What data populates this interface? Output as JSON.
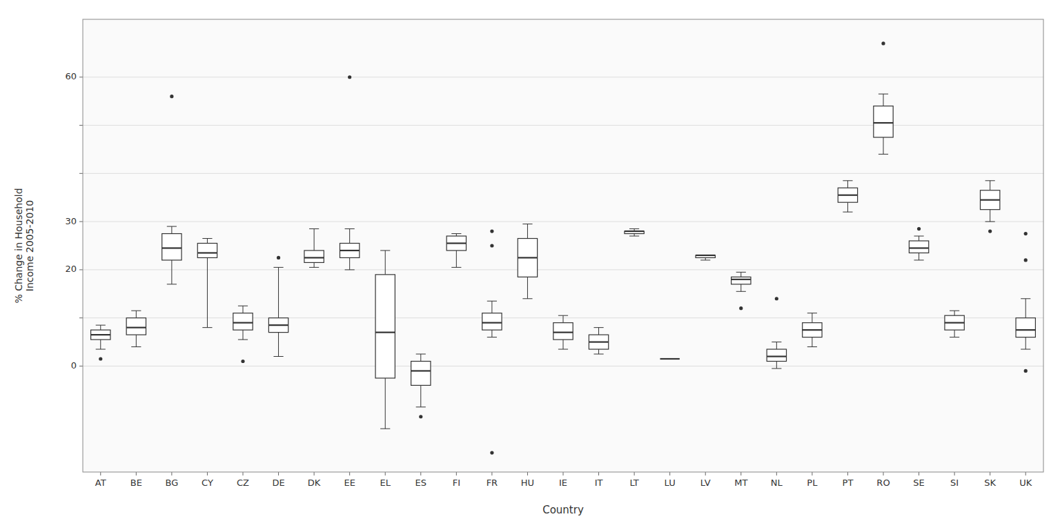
{
  "chart_data": {
    "type": "box",
    "xlabel": "Country",
    "ylabel": "% Change in Household\nIncome 2005-2010",
    "categories": [
      "AT",
      "BE",
      "BG",
      "CY",
      "CZ",
      "DE",
      "DK",
      "EE",
      "EL",
      "ES",
      "FI",
      "FR",
      "HU",
      "IE",
      "IT",
      "LT",
      "LU",
      "LV",
      "MT",
      "NL",
      "PL",
      "PT",
      "RO",
      "SE",
      "SI",
      "SK",
      "UK"
    ],
    "boxes": [
      {
        "whislo": 3.5,
        "q1": 5.5,
        "med": 6.5,
        "q3": 7.5,
        "whishi": 8.5,
        "fliers": [
          1.5
        ]
      },
      {
        "whislo": 4.0,
        "q1": 6.5,
        "med": 8.0,
        "q3": 10.0,
        "whishi": 11.5,
        "fliers": []
      },
      {
        "whislo": 17.0,
        "q1": 22.0,
        "med": 24.5,
        "q3": 27.5,
        "whishi": 29.0,
        "fliers": [
          56.0
        ]
      },
      {
        "whislo": 8.0,
        "q1": 22.5,
        "med": 23.5,
        "q3": 25.5,
        "whishi": 26.5,
        "fliers": []
      },
      {
        "whislo": 5.5,
        "q1": 7.5,
        "med": 9.0,
        "q3": 11.0,
        "whishi": 12.5,
        "fliers": [
          1.0
        ]
      },
      {
        "whislo": 2.0,
        "q1": 7.0,
        "med": 8.5,
        "q3": 10.0,
        "whishi": 20.5,
        "fliers": [
          22.5
        ]
      },
      {
        "whislo": 20.5,
        "q1": 21.5,
        "med": 22.5,
        "q3": 24.0,
        "whishi": 28.5,
        "fliers": []
      },
      {
        "whislo": 20.0,
        "q1": 22.5,
        "med": 24.0,
        "q3": 25.5,
        "whishi": 28.5,
        "fliers": [
          60.0
        ]
      },
      {
        "whislo": -13.0,
        "q1": -2.5,
        "med": 7.0,
        "q3": 19.0,
        "whishi": 24.0,
        "fliers": []
      },
      {
        "whislo": -8.5,
        "q1": -4.0,
        "med": -1.0,
        "q3": 1.0,
        "whishi": 2.5,
        "fliers": [
          -10.5
        ]
      },
      {
        "whislo": 20.5,
        "q1": 24.0,
        "med": 25.5,
        "q3": 27.0,
        "whishi": 27.5,
        "fliers": []
      },
      {
        "whislo": 6.0,
        "q1": 7.5,
        "med": 9.0,
        "q3": 11.0,
        "whishi": 13.5,
        "fliers": [
          28.0,
          25.0,
          -18.0
        ]
      },
      {
        "whislo": 14.0,
        "q1": 18.5,
        "med": 22.5,
        "q3": 26.5,
        "whishi": 29.5,
        "fliers": []
      },
      {
        "whislo": 3.5,
        "q1": 5.5,
        "med": 7.0,
        "q3": 9.0,
        "whishi": 10.5,
        "fliers": []
      },
      {
        "whislo": 2.5,
        "q1": 3.5,
        "med": 5.0,
        "q3": 6.5,
        "whishi": 8.0,
        "fliers": []
      },
      {
        "whislo": 27.0,
        "q1": 27.5,
        "med": 28.0,
        "q3": 28.0,
        "whishi": 28.5,
        "fliers": []
      },
      {
        "whislo": 1.5,
        "q1": 1.5,
        "med": 1.5,
        "q3": 1.5,
        "whishi": 1.5,
        "fliers": []
      },
      {
        "whislo": 22.0,
        "q1": 22.5,
        "med": 23.0,
        "q3": 23.0,
        "whishi": 23.0,
        "fliers": []
      },
      {
        "whislo": 15.5,
        "q1": 17.0,
        "med": 18.0,
        "q3": 18.5,
        "whishi": 19.5,
        "fliers": [
          12.0
        ]
      },
      {
        "whislo": -0.5,
        "q1": 1.0,
        "med": 2.0,
        "q3": 3.5,
        "whishi": 5.0,
        "fliers": [
          14.0
        ]
      },
      {
        "whislo": 4.0,
        "q1": 6.0,
        "med": 7.5,
        "q3": 9.0,
        "whishi": 11.0,
        "fliers": []
      },
      {
        "whislo": 32.0,
        "q1": 34.0,
        "med": 35.5,
        "q3": 37.0,
        "whishi": 38.5,
        "fliers": []
      },
      {
        "whislo": 44.0,
        "q1": 47.5,
        "med": 50.5,
        "q3": 54.0,
        "whishi": 56.5,
        "fliers": [
          67.0
        ]
      },
      {
        "whislo": 22.0,
        "q1": 23.5,
        "med": 24.5,
        "q3": 26.0,
        "whishi": 27.0,
        "fliers": [
          28.5
        ]
      },
      {
        "whislo": 6.0,
        "q1": 7.5,
        "med": 9.0,
        "q3": 10.5,
        "whishi": 11.5,
        "fliers": []
      },
      {
        "whislo": 30.0,
        "q1": 32.5,
        "med": 34.5,
        "q3": 36.5,
        "whishi": 38.5,
        "fliers": [
          28.0
        ]
      },
      {
        "whislo": 3.5,
        "q1": 6.0,
        "med": 7.5,
        "q3": 10.0,
        "whishi": 14.0,
        "fliers": [
          22.0,
          27.5,
          -1.0
        ]
      }
    ],
    "ylim": [
      -22,
      72
    ],
    "yticks": [
      0,
      {
        "value": 10,
        "label": null
      },
      20,
      30,
      {
        "value": 40,
        "label": null
      },
      {
        "value": 50,
        "label": null
      },
      60
    ],
    "grid": true
  }
}
